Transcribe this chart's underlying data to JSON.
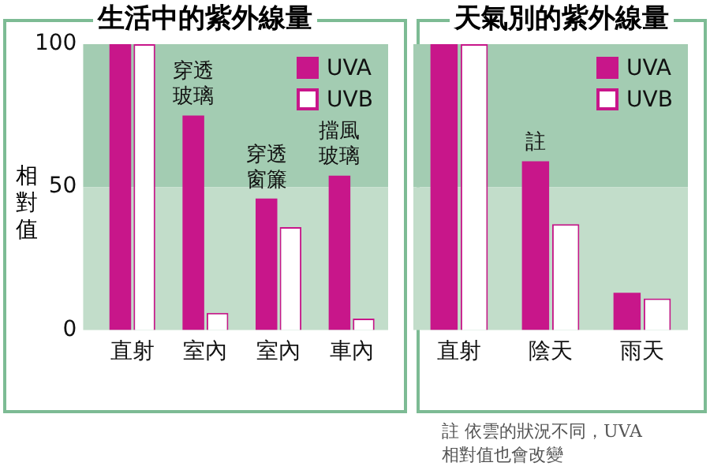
{
  "chart_data": [
    {
      "type": "bar",
      "title": "生活中的紫外線量",
      "ylabel": "相對值",
      "categories": [
        "直射",
        "室內",
        "室內",
        "車內"
      ],
      "series": [
        {
          "name": "UVA",
          "color": "#c8168a",
          "values": [
            100,
            75,
            46,
            54
          ]
        },
        {
          "name": "UVB",
          "color": "#ffffff",
          "values": [
            100,
            6,
            36,
            4
          ]
        }
      ],
      "ylim": [
        0,
        100
      ],
      "yticks": [
        0,
        50,
        100
      ],
      "grid": false,
      "legend": "top right",
      "bands": [
        {
          "axis": "y",
          "from": 50,
          "to": 100,
          "label": null,
          "color": "#a3ccb2"
        },
        {
          "axis": "y",
          "from": 0,
          "to": 50,
          "label": null,
          "color": "#c2ddca"
        }
      ],
      "annotations": [
        {
          "text": "穿透玻璃",
          "x": "室內",
          "y": 75
        },
        {
          "text": "穿透窗簾",
          "x": "室內",
          "y": 46
        },
        {
          "text": "擋風玻璃",
          "x": "車內",
          "y": 54
        }
      ]
    },
    {
      "type": "bar",
      "title": "天氣別的紫外線量",
      "categories": [
        "直射",
        "陰天",
        "雨天"
      ],
      "series": [
        {
          "name": "UVA",
          "color": "#c8168a",
          "values": [
            100,
            59,
            13
          ]
        },
        {
          "name": "UVB",
          "color": "#ffffff",
          "values": [
            100,
            37,
            11
          ]
        }
      ],
      "ylim": [
        0,
        100
      ],
      "yticks": [
        0,
        50,
        100
      ],
      "tick_labels": "x",
      "grid": false,
      "legend": "top right",
      "bands": [
        {
          "axis": "y",
          "from": 50,
          "to": 100,
          "label": null,
          "color": "#a3ccb2"
        },
        {
          "axis": "y",
          "from": 0,
          "to": 50,
          "label": null,
          "color": "#c2ddca"
        }
      ],
      "annotations": [
        {
          "text": "註",
          "x": "陰天",
          "y": 59
        },
        "註 依雲的狀況不同，UVA相對值也會改變"
      ]
    }
  ]
}
